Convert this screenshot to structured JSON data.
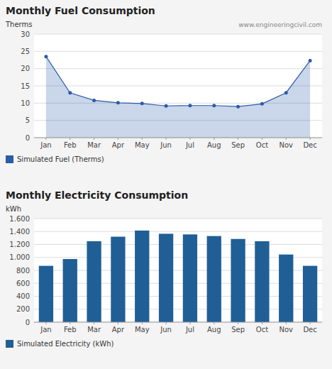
{
  "chart_data": [
    {
      "type": "area",
      "title": "Monthly Fuel Consumption",
      "ylabel": "Therms",
      "annotations": [
        "www.engineeringcivil.com"
      ],
      "categories": [
        "Jan",
        "Feb",
        "Mar",
        "Apr",
        "May",
        "Jun",
        "Jul",
        "Aug",
        "Sep",
        "Oct",
        "Nov",
        "Dec"
      ],
      "series": [
        {
          "name": "Simulated Fuel (Therms)",
          "color": "#2a5ca8",
          "marker": "circle",
          "values": [
            23.5,
            13.0,
            10.8,
            10.1,
            9.9,
            9.2,
            9.3,
            9.3,
            9.0,
            9.8,
            13.0,
            22.3
          ]
        }
      ],
      "ylim": [
        0,
        30
      ],
      "yticks": [
        0,
        5,
        10,
        15,
        20,
        25,
        30
      ],
      "grid": true,
      "legend": "bottom"
    },
    {
      "type": "bar",
      "title": "Monthly Electricity Consumption",
      "ylabel": "kWh",
      "categories": [
        "Jan",
        "Feb",
        "Mar",
        "Apr",
        "May",
        "Jun",
        "Jul",
        "Aug",
        "Sep",
        "Oct",
        "Nov",
        "Dec"
      ],
      "series": [
        {
          "name": "Simulated Electricity (kWh)",
          "color": "#1f5f96",
          "values": [
            870,
            975,
            1250,
            1320,
            1415,
            1365,
            1355,
            1330,
            1285,
            1250,
            1045,
            870
          ]
        }
      ],
      "ylim": [
        0,
        1600
      ],
      "yticks": [
        0,
        200,
        400,
        600,
        800,
        {
          "value": 1000,
          "label": "1.000"
        },
        {
          "value": 1200,
          "label": "1.200"
        },
        {
          "value": 1400,
          "label": "1.400"
        },
        {
          "value": 1600,
          "label": "1.600"
        }
      ],
      "grid": true,
      "legend": "bottom"
    }
  ]
}
